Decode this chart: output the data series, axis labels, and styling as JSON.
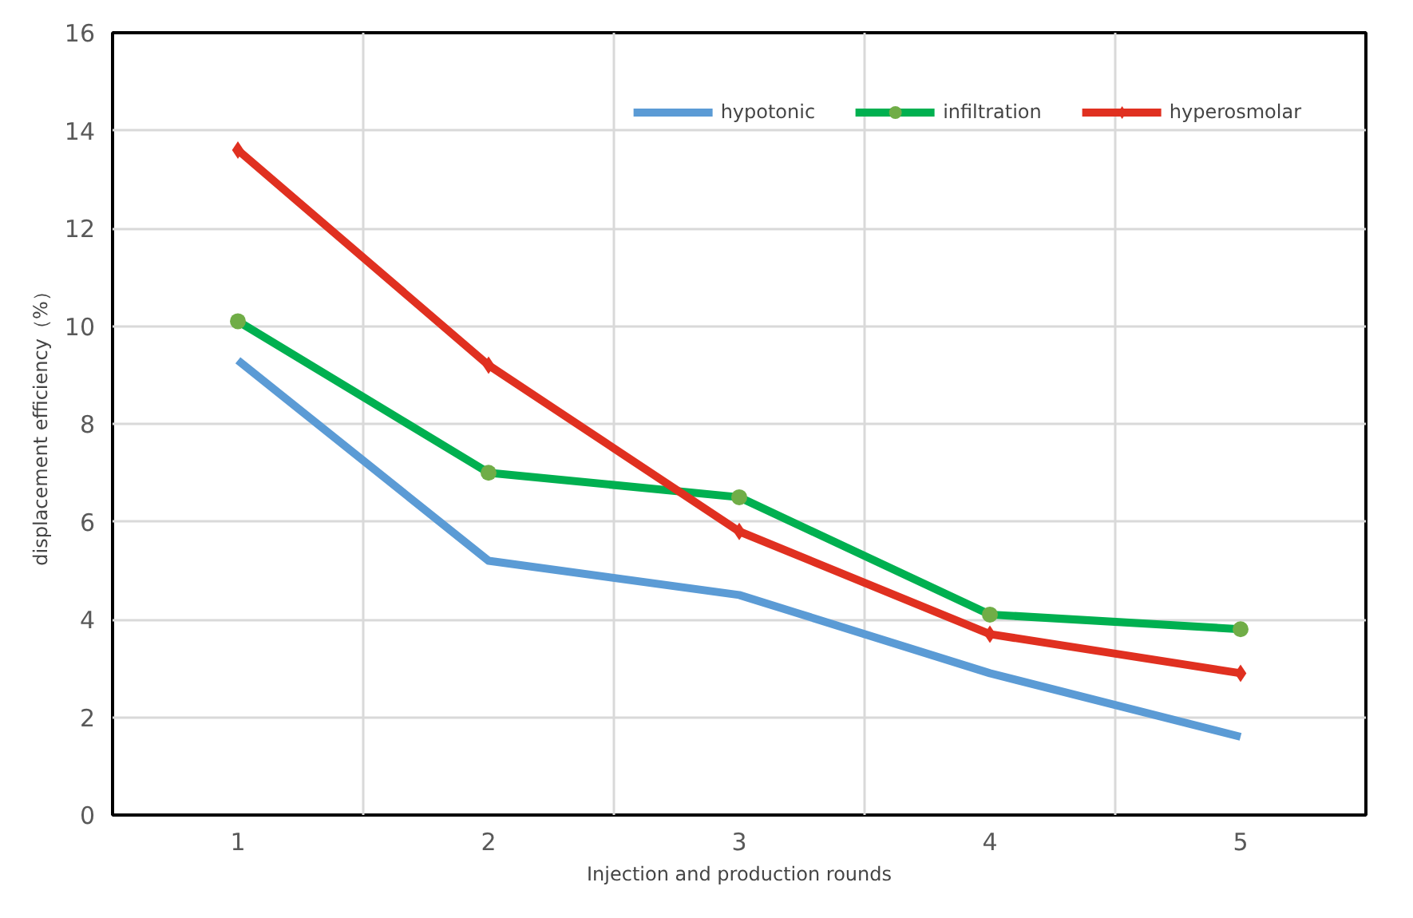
{
  "chart_data": {
    "type": "line",
    "xlabel": "Injection and production rounds",
    "ylabel": "displacement efficiency（%）",
    "categories": [
      "1",
      "2",
      "3",
      "4",
      "5"
    ],
    "ylim": [
      0,
      16
    ],
    "yticks": [
      0,
      2,
      4,
      6,
      8,
      10,
      12,
      14,
      16
    ],
    "grid": true,
    "legend": "top right",
    "line_style": "solid",
    "series": [
      {
        "name": "hypotonic",
        "color": "#5b9bd5",
        "marker": "none",
        "values": [
          9.3,
          5.2,
          4.5,
          2.9,
          1.6
        ]
      },
      {
        "name": "infiltration",
        "color": "#00b050",
        "marker": "circle",
        "values": [
          10.1,
          7.0,
          6.5,
          4.1,
          3.8
        ]
      },
      {
        "name": "hyperosmolar",
        "color": "#e03020",
        "marker": "diamond",
        "values": [
          13.6,
          9.2,
          5.8,
          3.7,
          2.9
        ]
      }
    ]
  }
}
